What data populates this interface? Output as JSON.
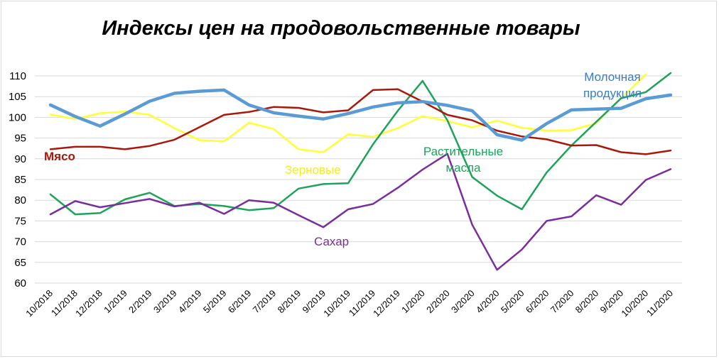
{
  "chart_data": {
    "type": "line",
    "title": "Индексы цен на продовольственные  товары",
    "xlabel": "",
    "ylabel": "",
    "ylim": [
      60,
      110
    ],
    "yticks": [
      60,
      65,
      70,
      75,
      80,
      85,
      90,
      95,
      100,
      105,
      110
    ],
    "grid": true,
    "legend": "inline labels",
    "categories": [
      "10/2018",
      "11/2018",
      "12/2018",
      "1/2019",
      "2/2019",
      "3/2019",
      "4/2019",
      "5/2019",
      "6/2019",
      "7/2019",
      "8/2019",
      "9/2019",
      "10/2019",
      "11/2019",
      "12/2019",
      "1/2020",
      "2/2020",
      "3/2020",
      "4/2020",
      "5/2020",
      "6/2020",
      "7/2020",
      "8/2020",
      "9/2020",
      "10/2020",
      "11/2020"
    ],
    "series": [
      {
        "name": "Молочная\nпродукция",
        "label_lines": [
          "Молочная",
          "продукция"
        ],
        "color": "#5b9bd5",
        "values": [
          103,
          100.2,
          97.9,
          100.8,
          103.9,
          105.8,
          106.3,
          106.6,
          103,
          101.1,
          100.3,
          99.6,
          100.9,
          102.5,
          103.5,
          103.8,
          102.9,
          101.6,
          95.8,
          94.5,
          98.5,
          101.8,
          102,
          102.2,
          104.5,
          105.4
        ]
      },
      {
        "name": "Мясо",
        "label_lines": [
          "Мясо"
        ],
        "color": "#a9180b",
        "values": [
          92.3,
          92.9,
          92.9,
          92.3,
          93.1,
          94.6,
          97.6,
          100.6,
          101.3,
          102.5,
          102.3,
          101.2,
          101.7,
          106.6,
          106.8,
          103.8,
          100.6,
          99.3,
          96.8,
          95.4,
          94.7,
          93.2,
          93.3,
          91.6,
          91.1,
          92
        ]
      },
      {
        "name": "Зерновые",
        "label_lines": [
          "Зерновые"
        ],
        "color": "#ffff33",
        "values": [
          100.7,
          99.6,
          101,
          101.4,
          100.6,
          97.4,
          94.5,
          94.2,
          98.7,
          97.2,
          92.3,
          91.6,
          95.9,
          95.3,
          97.4,
          100.3,
          99.1,
          97.6,
          99.2,
          97.5,
          96.8,
          96.9,
          98.6,
          104.6,
          110.4,
          null
        ]
      },
      {
        "name": "Растительные\nмасла",
        "label_lines": [
          "Растительные",
          "масла"
        ],
        "color": "#1ea35a",
        "values": [
          81.4,
          76.6,
          76.9,
          80.2,
          81.8,
          78.6,
          79.1,
          78.6,
          77.6,
          78.1,
          82.8,
          83.9,
          84.1,
          93.5,
          101.6,
          108.8,
          99.3,
          85.6,
          81.1,
          77.8,
          86.7,
          93.2,
          98.9,
          104.6,
          106.1,
          110.7
        ]
      },
      {
        "name": "Сахар",
        "label_lines": [
          "Сахар"
        ],
        "color": "#7a2e9b",
        "values": [
          76.6,
          79.8,
          78.3,
          79.3,
          80.3,
          78.5,
          79.4,
          76.7,
          80,
          79.4,
          76.4,
          73.5,
          77.8,
          79.1,
          83,
          87.4,
          91.2,
          74.1,
          63.2,
          68.1,
          75,
          76.1,
          81.2,
          78.9,
          84.9,
          87.5
        ]
      }
    ]
  }
}
